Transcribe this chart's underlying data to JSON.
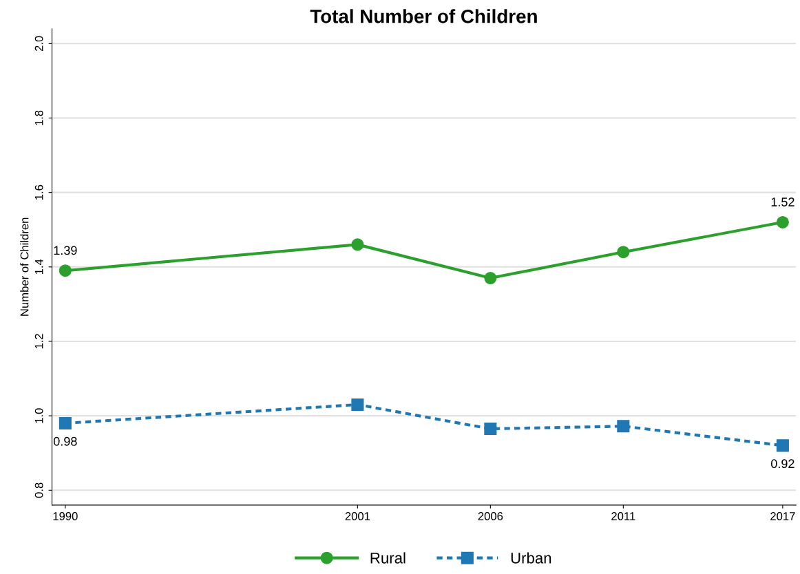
{
  "chart_data": {
    "type": "line",
    "title": "Total Number of Children",
    "ylabel": "Number of Children",
    "x": [
      1990,
      2001,
      2006,
      2011,
      2017
    ],
    "series": [
      {
        "name": "Rural",
        "color": "#2ca02c",
        "values": [
          1.39,
          1.46,
          1.37,
          1.44,
          1.52
        ],
        "marker": "circle",
        "line_style": "solid",
        "value_labels": [
          "1.39",
          null,
          null,
          null,
          "1.52"
        ]
      },
      {
        "name": "Urban",
        "color": "#1f77b4",
        "values": [
          0.98,
          1.03,
          0.965,
          0.972,
          0.92
        ],
        "marker": "square",
        "line_style": "dotted",
        "value_labels": [
          "0.98",
          null,
          null,
          null,
          "0.92"
        ]
      }
    ],
    "xlim": [
      1989.5,
      2017.5
    ],
    "xticks": [
      1990,
      2001,
      2006,
      2011,
      2017
    ],
    "ylim": [
      0.76,
      2.04
    ],
    "yticks": [
      {
        "value": 0.8,
        "label": "0.8"
      },
      {
        "value": 1.0,
        "label": "1.0"
      },
      {
        "value": 1.2,
        "label": "1.2"
      },
      {
        "value": 1.4,
        "label": "1.4"
      },
      {
        "value": 1.6,
        "label": "1.6"
      },
      {
        "value": 1.8,
        "label": "1.8"
      },
      {
        "value": 2.0,
        "label": "2.0"
      }
    ],
    "grid": "y",
    "legend": "bottom"
  }
}
